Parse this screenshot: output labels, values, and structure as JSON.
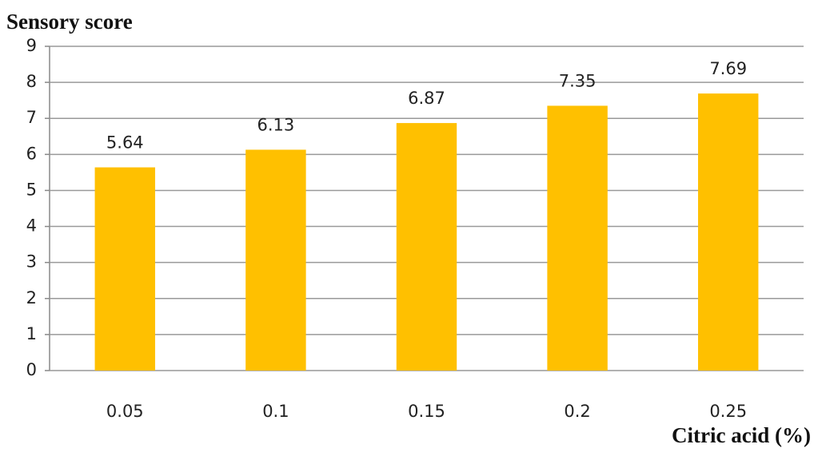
{
  "chart_data": {
    "type": "bar",
    "y_axis_label": "Sensory score",
    "x_axis_label": "Citric acid (%)",
    "categories": [
      "0.05",
      "0.1",
      "0.15",
      "0.2",
      "0.25"
    ],
    "values": [
      5.64,
      6.13,
      6.87,
      7.35,
      7.69
    ],
    "color": "#ffc000",
    "ylim": [
      0,
      9
    ],
    "yticks": [
      0,
      1,
      2,
      3,
      4,
      5,
      6,
      7,
      8,
      9
    ],
    "grid": true
  }
}
